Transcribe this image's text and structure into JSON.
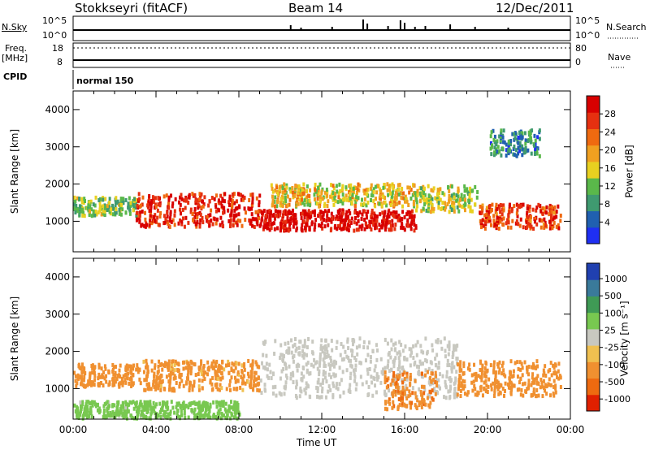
{
  "header": {
    "station": "Stokkseyri (fitACF)",
    "beam": "Beam 14",
    "date": "12/Dec/2011"
  },
  "strips": {
    "nsky_label": "N.Sky",
    "nsky_ticks": [
      "10^5",
      "10^0"
    ],
    "nsearch_label": "N.Search",
    "nsearch_ticks": [
      "10^5",
      "10^0"
    ],
    "freq_label": "Freq.",
    "freq_unit": "[MHz]",
    "freq_ticks": [
      "18",
      "8"
    ],
    "nave_label": "Nave",
    "nave_ticks": [
      "80",
      "0"
    ],
    "cpid_label": "CPID",
    "cpid_value": "normal 150"
  },
  "colorbars": {
    "power": {
      "label": "Power [dB]",
      "ticks": [
        "28",
        "24",
        "20",
        "16",
        "12",
        "8",
        "4"
      ],
      "colors": [
        "#1f2ff2",
        "#2060b0",
        "#3f9a70",
        "#5ab84a",
        "#e8d020",
        "#f0a020",
        "#ef6a10",
        "#e63010",
        "#d80000"
      ]
    },
    "velocity": {
      "label": "Velocity [m s⁻¹]",
      "ticks": [
        "1000",
        "500",
        "100",
        "25",
        "-25",
        "-100",
        "-500",
        "-1000"
      ],
      "colors": [
        "#2040b0",
        "#3a7a9a",
        "#3f9a55",
        "#78c850",
        "#c8c8c0",
        "#f0c050",
        "#f09030",
        "#ee6a10",
        "#e02000"
      ]
    }
  },
  "chart_data": [
    {
      "type": "heatmap",
      "title": "",
      "ylabel": "Slant Range [km]",
      "xlabel": "",
      "ylim": [
        180,
        4500
      ],
      "yticks": [
        "1000",
        "2000",
        "3000",
        "4000"
      ],
      "xlim": [
        "00:00",
        "24:00"
      ],
      "quantity": "Power [dB]",
      "bands": [
        {
          "start_h": 0.0,
          "end_h": 3.0,
          "range_low": 1200,
          "range_high": 1700,
          "level_db": 12
        },
        {
          "start_h": 3.0,
          "end_h": 9.0,
          "range_low": 900,
          "range_high": 1800,
          "level_db": 26
        },
        {
          "start_h": 9.0,
          "end_h": 16.5,
          "range_low": 800,
          "range_high": 1350,
          "level_db": 28
        },
        {
          "start_h": 9.5,
          "end_h": 16.5,
          "range_low": 1450,
          "range_high": 2050,
          "level_db": 16
        },
        {
          "start_h": 16.5,
          "end_h": 19.5,
          "range_low": 1300,
          "range_high": 2000,
          "level_db": 14
        },
        {
          "start_h": 19.5,
          "end_h": 23.5,
          "range_low": 850,
          "range_high": 1500,
          "level_db": 24
        },
        {
          "start_h": 20.0,
          "end_h": 22.5,
          "range_low": 2800,
          "range_high": 3500,
          "level_db": 8
        }
      ]
    },
    {
      "type": "heatmap",
      "title": "",
      "ylabel": "Slant Range [km]",
      "xlabel": "Time UT",
      "ylim": [
        180,
        4500
      ],
      "yticks": [
        "1000",
        "2000",
        "3000",
        "4000"
      ],
      "xticks": [
        "00:00",
        "04:00",
        "08:00",
        "12:00",
        "16:00",
        "20:00",
        "00:00"
      ],
      "quantity": "Velocity [m s⁻¹]",
      "bands": [
        {
          "start_h": 0.0,
          "end_h": 3.0,
          "range_low": 1100,
          "range_high": 1700,
          "velocity": -300
        },
        {
          "start_h": 3.0,
          "end_h": 9.0,
          "range_low": 1000,
          "range_high": 1800,
          "velocity": -200
        },
        {
          "start_h": 9.0,
          "end_h": 18.5,
          "range_low": 800,
          "range_high": 2400,
          "velocity": 0
        },
        {
          "start_h": 15.0,
          "end_h": 17.5,
          "range_low": 500,
          "range_high": 1500,
          "velocity": -400
        },
        {
          "start_h": 18.5,
          "end_h": 23.5,
          "range_low": 850,
          "range_high": 1800,
          "velocity": -250
        },
        {
          "start_h": 0.0,
          "end_h": 8.0,
          "range_low": 250,
          "range_high": 700,
          "velocity": 60
        }
      ]
    }
  ]
}
